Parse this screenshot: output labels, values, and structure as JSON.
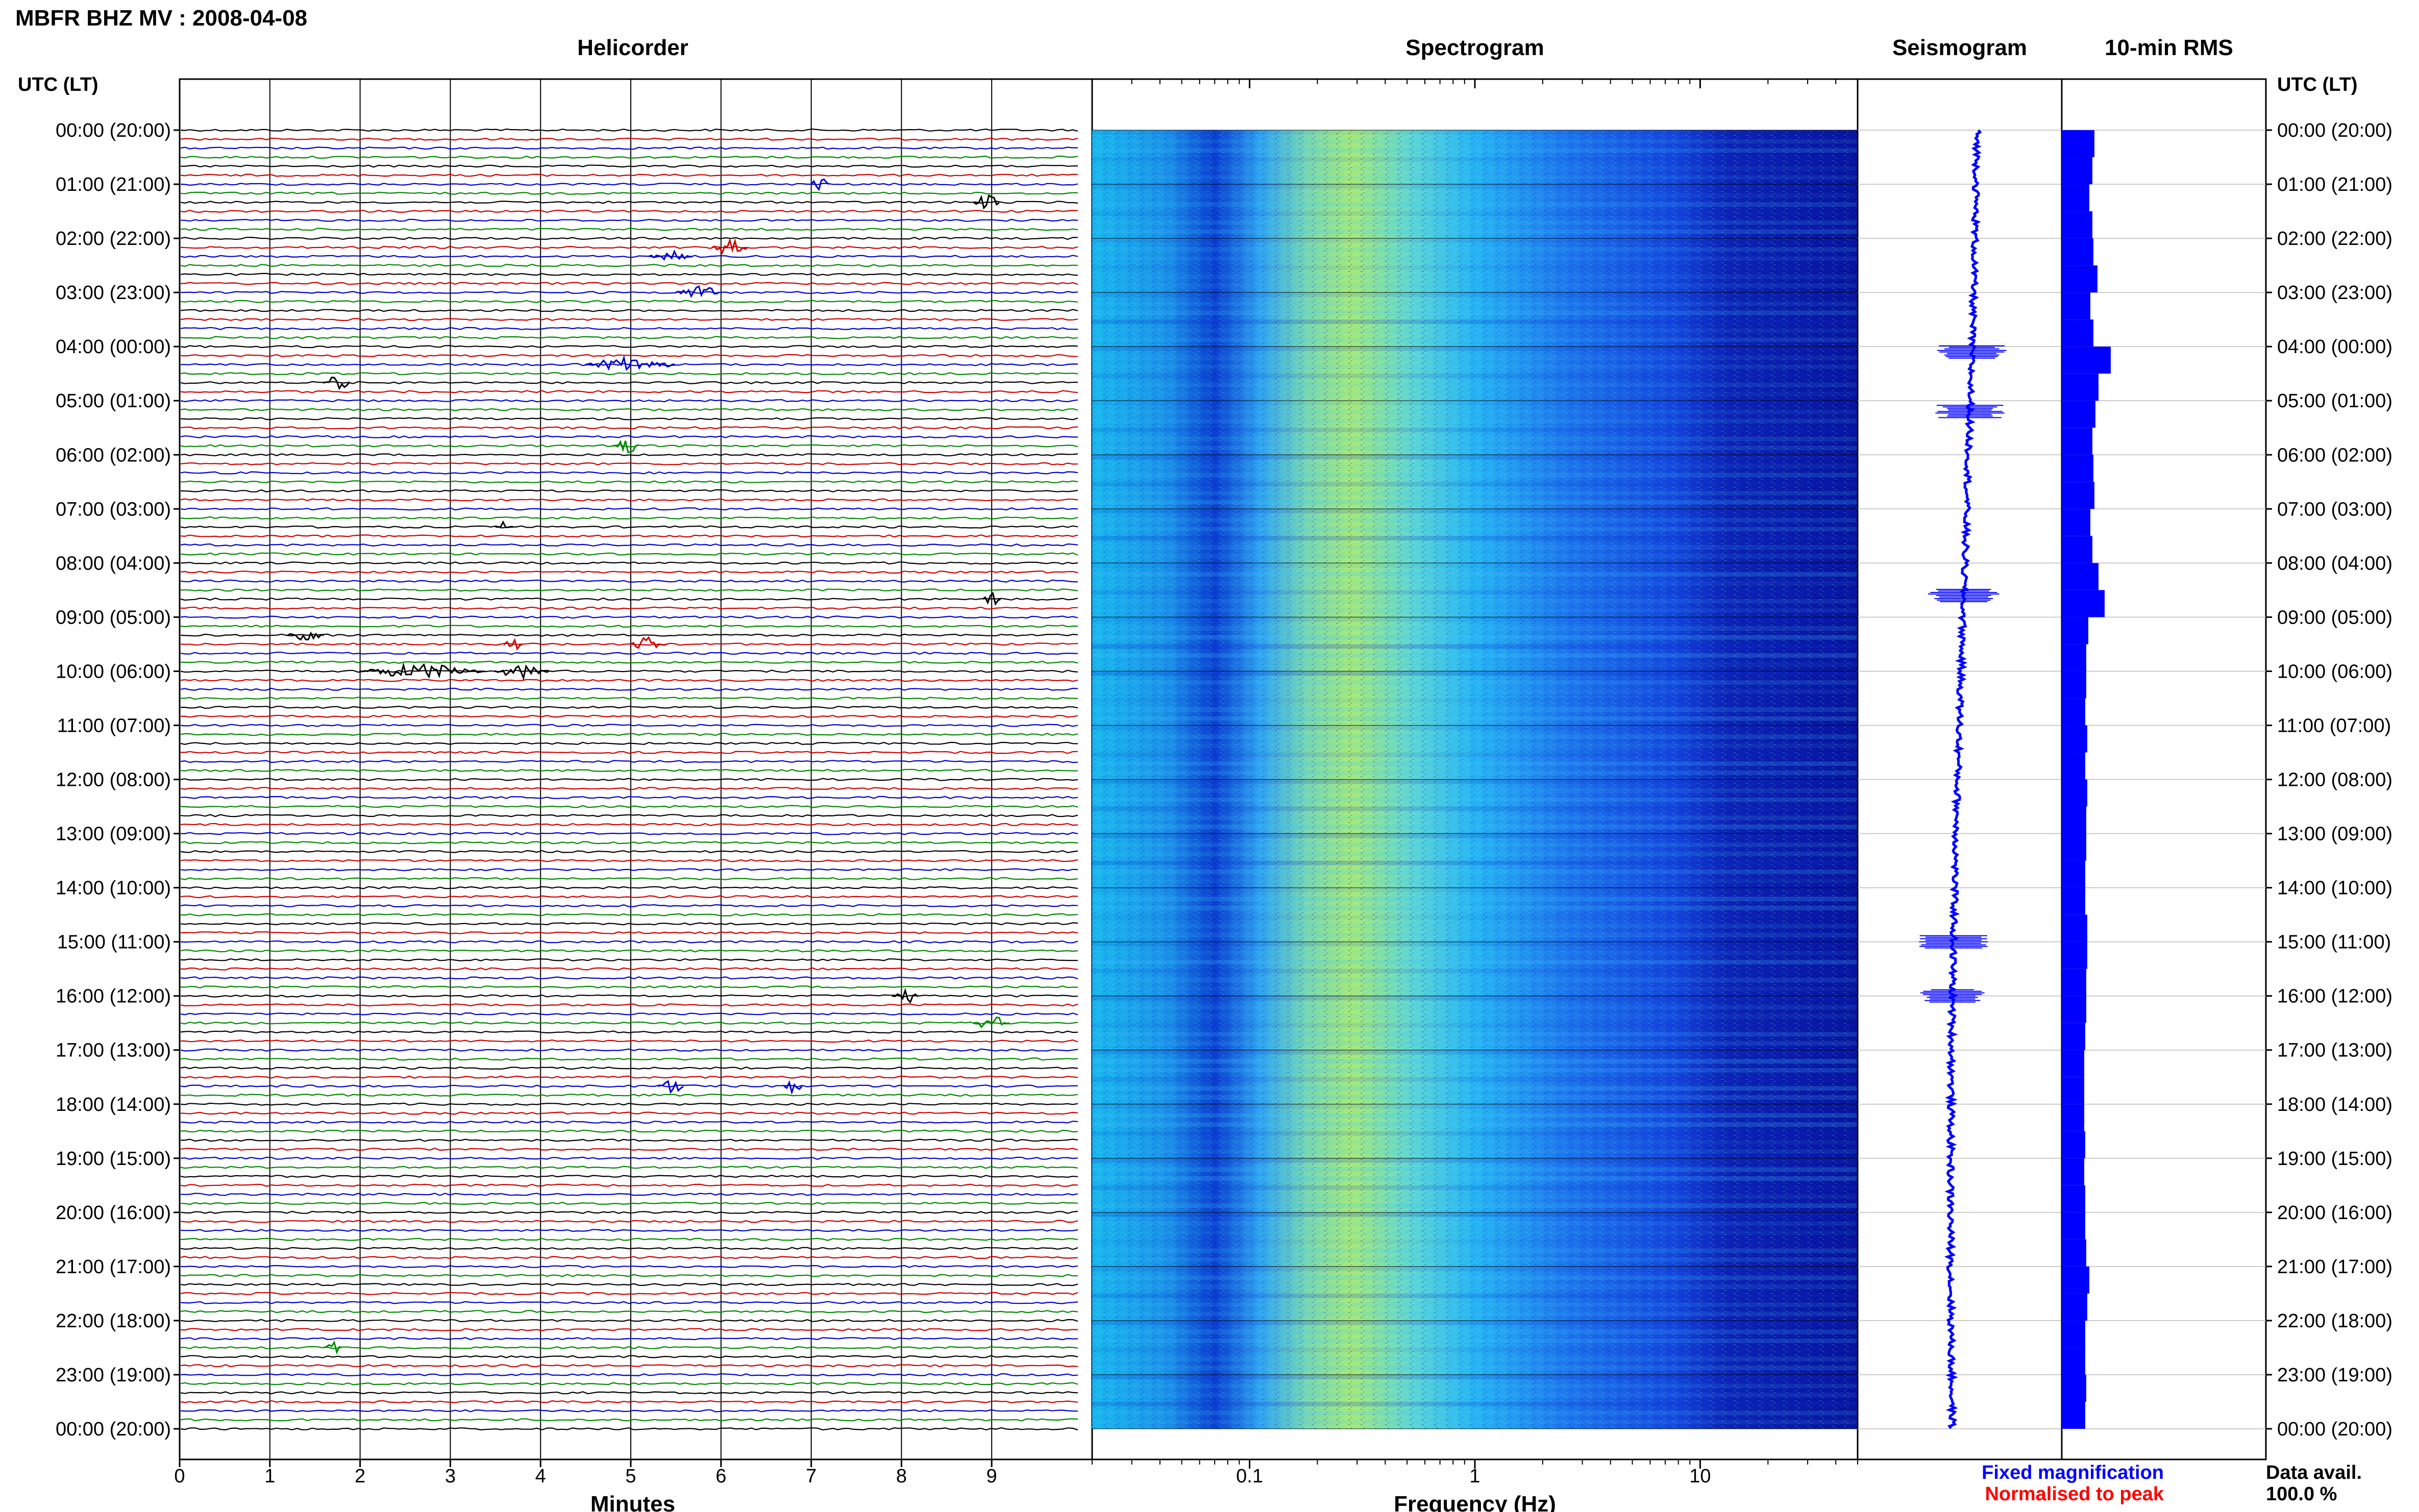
{
  "title": "MBFR BHZ MV : 2008-04-08",
  "panels": {
    "helicorder": "Helicorder",
    "spectrogram": "Spectrogram",
    "seismogram": "Seismogram",
    "rms": "10-min RMS"
  },
  "axis_header_left": "UTC (LT)",
  "axis_header_right": "UTC (LT)",
  "xlabels": {
    "helicorder": "Minutes",
    "spectrogram": "Frequency (Hz)"
  },
  "legend": {
    "fixed": "Fixed magnification",
    "normalised": "Normalised to peak"
  },
  "data_avail": {
    "label": "Data avail.",
    "value": "100.0 %"
  },
  "colors": {
    "trace_cycle": [
      "#000000",
      "#cc0000",
      "#0000cc",
      "#008800"
    ],
    "fixed": "#0000ff",
    "normalised": "#ff0000",
    "rms_fill": "#0000ff",
    "seismogram": "#0000ff"
  },
  "chart_data": [
    {
      "type": "line",
      "panel": "Helicorder",
      "xlabel": "Minutes",
      "x_ticks": [
        "0",
        "1",
        "2",
        "3",
        "4",
        "5",
        "6",
        "7",
        "8",
        "9"
      ],
      "xlim": [
        0,
        10
      ],
      "lines_per_hour": 6,
      "hours": 24,
      "time_labels": [
        "00:00 (20:00)",
        "01:00 (21:00)",
        "02:00 (22:00)",
        "03:00 (23:00)",
        "04:00 (00:00)",
        "05:00 (01:00)",
        "06:00 (02:00)",
        "07:00 (03:00)",
        "08:00 (04:00)",
        "09:00 (05:00)",
        "10:00 (06:00)",
        "11:00 (07:00)",
        "12:00 (08:00)",
        "13:00 (09:00)",
        "14:00 (10:00)",
        "15:00 (11:00)",
        "16:00 (12:00)",
        "17:00 (13:00)",
        "18:00 (14:00)",
        "19:00 (15:00)",
        "20:00 (16:00)",
        "21:00 (17:00)",
        "22:00 (18:00)",
        "23:00 (19:00)",
        "00:00 (20:00)"
      ]
    },
    {
      "type": "heatmap",
      "panel": "Spectrogram",
      "xlabel": "Frequency (Hz)",
      "x_scale": "log",
      "xlim": [
        0.02,
        50
      ],
      "x_ticks": [
        "0.1",
        "1",
        "10"
      ],
      "colormap": "jet"
    },
    {
      "type": "line",
      "panel": "Seismogram",
      "orientation": "vertical",
      "bursts_hours": [
        4.1,
        5.2,
        8.6,
        15.0,
        16.0
      ]
    },
    {
      "type": "bar",
      "panel": "10-min RMS",
      "orientation": "horizontal",
      "hours": [
        0,
        0.5,
        1,
        1.5,
        2,
        2.5,
        3,
        3.5,
        4,
        4.5,
        5,
        5.5,
        6,
        6.5,
        7,
        7.5,
        8,
        8.5,
        9,
        9.5,
        10,
        10.5,
        11,
        11.5,
        12,
        12.5,
        13,
        13.5,
        14,
        14.5,
        15,
        15.5,
        16,
        16.5,
        17,
        17.5,
        18,
        18.5,
        19,
        19.5,
        20,
        20.5,
        21,
        21.5,
        22,
        22.5,
        23,
        23.5
      ],
      "values": [
        0.32,
        0.3,
        0.27,
        0.3,
        0.31,
        0.35,
        0.28,
        0.31,
        0.48,
        0.36,
        0.33,
        0.3,
        0.31,
        0.32,
        0.28,
        0.3,
        0.36,
        0.42,
        0.26,
        0.24,
        0.24,
        0.23,
        0.25,
        0.23,
        0.25,
        0.24,
        0.24,
        0.23,
        0.23,
        0.25,
        0.25,
        0.24,
        0.24,
        0.23,
        0.22,
        0.22,
        0.22,
        0.23,
        0.22,
        0.23,
        0.23,
        0.24,
        0.27,
        0.25,
        0.23,
        0.23,
        0.24,
        0.23
      ]
    }
  ]
}
